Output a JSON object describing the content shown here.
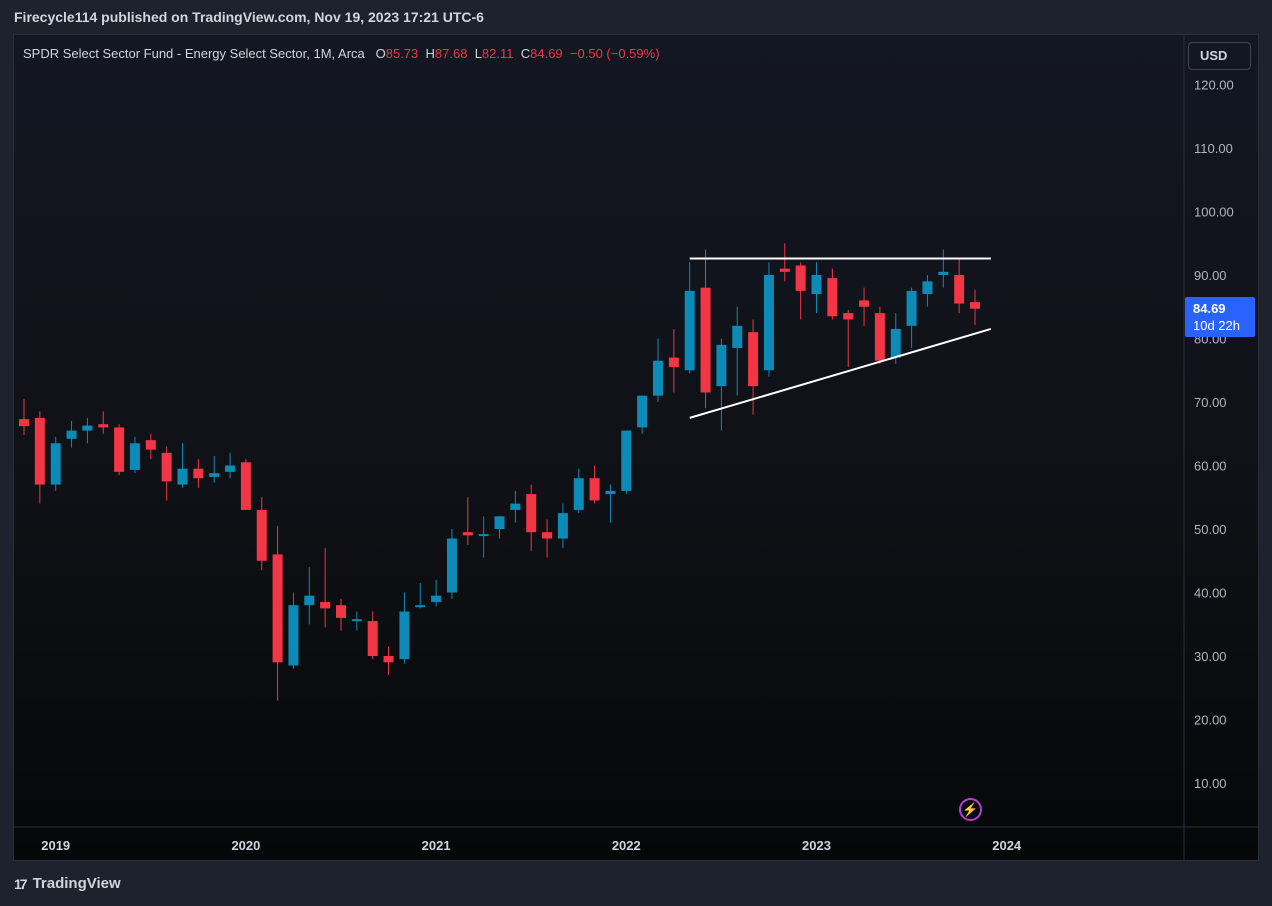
{
  "header": {
    "published": "Firecycle114 published on TradingView.com, Nov 19, 2023 17:21 UTC-6"
  },
  "legend": {
    "symbol": "SPDR Select Sector Fund - Energy Select Sector, 1M, Arca",
    "o_label": "O",
    "o_value": "85.73",
    "h_label": "H",
    "h_value": "87.68",
    "l_label": "L",
    "l_value": "82.11",
    "c_label": "C",
    "c_value": "84.69",
    "change": "−0.50 (−0.59%)"
  },
  "currency": "USD",
  "price_tag": {
    "price": "84.69",
    "countdown": "10d 22h"
  },
  "footer": {
    "brand": "TradingView"
  },
  "colors": {
    "up": "#26a69a",
    "up_body": "#0d8ab5",
    "down": "#f23645",
    "background": "#131722",
    "price_tag": "#2962ff",
    "trendline": "#ffffff"
  },
  "icons": {
    "flash": "lightning-icon",
    "logo": "tradingview-logo-icon"
  },
  "chart_data": {
    "type": "candlestick",
    "title": "SPDR Select Sector Fund - Energy Select Sector, 1M, Arca",
    "xlabel": "",
    "ylabel": "",
    "ylim": [
      3,
      124
    ],
    "y_ticks": [
      "120.00",
      "110.00",
      "100.00",
      "90.00",
      "80.00",
      "70.00",
      "60.00",
      "50.00",
      "40.00",
      "30.00",
      "20.00",
      "10.00"
    ],
    "x_ticks": [
      "2019",
      "2020",
      "2021",
      "2022",
      "2023",
      "2024"
    ],
    "x_ticks_year": [
      2019,
      2020,
      2021,
      2022,
      2023,
      2024
    ],
    "start_month": "2018-11",
    "candles": [
      [
        67.3,
        70.5,
        64.8,
        66.2
      ],
      [
        67.5,
        68.5,
        54.0,
        57.0
      ],
      [
        57.0,
        64.5,
        56.0,
        63.5
      ],
      [
        64.2,
        67.0,
        62.8,
        65.5
      ],
      [
        65.5,
        67.5,
        63.5,
        66.3
      ],
      [
        66.5,
        68.5,
        65.0,
        66.0
      ],
      [
        66.0,
        66.5,
        58.5,
        59.0
      ],
      [
        59.3,
        64.5,
        58.8,
        63.5
      ],
      [
        64.0,
        65.0,
        61.0,
        62.5
      ],
      [
        62.0,
        63.0,
        54.5,
        57.5
      ],
      [
        57.0,
        63.5,
        56.5,
        59.5
      ],
      [
        59.5,
        61.0,
        56.5,
        58.0
      ],
      [
        58.2,
        61.5,
        57.3,
        58.8
      ],
      [
        59.0,
        62.0,
        58.0,
        60.0
      ],
      [
        60.5,
        61.0,
        53.0,
        53.0
      ],
      [
        53.0,
        55.0,
        43.5,
        45.0
      ],
      [
        46.0,
        50.5,
        23.0,
        29.0
      ],
      [
        28.5,
        40.0,
        28.0,
        38.0
      ],
      [
        38.0,
        44.0,
        35.0,
        39.5
      ],
      [
        38.5,
        47.0,
        34.5,
        37.5
      ],
      [
        38.0,
        39.0,
        34.0,
        36.0
      ],
      [
        35.5,
        37.0,
        34.0,
        35.8
      ],
      [
        35.5,
        37.0,
        29.5,
        30.0
      ],
      [
        30.0,
        31.5,
        27.0,
        29.0
      ],
      [
        29.5,
        40.0,
        28.8,
        37.0
      ],
      [
        38.0,
        41.5,
        37.5,
        38.0
      ],
      [
        38.5,
        42.0,
        37.8,
        39.5
      ],
      [
        40.0,
        50.0,
        39.0,
        48.5
      ],
      [
        49.5,
        55.0,
        47.5,
        49.0
      ],
      [
        49.0,
        52.0,
        45.5,
        49.2
      ],
      [
        50.0,
        52.0,
        48.5,
        52.0
      ],
      [
        53.0,
        56.0,
        51.0,
        54.0
      ],
      [
        55.5,
        57.0,
        46.5,
        49.5
      ],
      [
        49.5,
        51.5,
        45.5,
        48.5
      ],
      [
        48.5,
        54.0,
        47.0,
        52.5
      ],
      [
        53.0,
        59.5,
        52.5,
        58.0
      ],
      [
        58.0,
        60.0,
        54.0,
        54.5
      ],
      [
        55.5,
        57.0,
        51.0,
        56.0
      ],
      [
        56.0,
        65.5,
        55.5,
        65.5
      ],
      [
        66.0,
        71.0,
        65.0,
        71.0
      ],
      [
        71.0,
        80.0,
        70.0,
        76.5
      ],
      [
        77.0,
        81.5,
        71.5,
        75.5
      ],
      [
        75.0,
        92.0,
        74.5,
        87.5
      ],
      [
        88.0,
        94.0,
        69.0,
        71.5
      ],
      [
        72.5,
        80.0,
        65.5,
        79.0
      ],
      [
        78.5,
        85.0,
        71.0,
        82.0
      ],
      [
        81.0,
        83.0,
        68.0,
        72.5
      ],
      [
        75.0,
        92.0,
        74.0,
        90.0
      ],
      [
        91.0,
        95.0,
        89.0,
        90.5
      ],
      [
        91.5,
        92.0,
        83.0,
        87.5
      ],
      [
        87.0,
        92.0,
        84.0,
        90.0
      ],
      [
        89.5,
        91.0,
        83.0,
        83.5
      ],
      [
        84.0,
        84.5,
        75.5,
        83.0
      ],
      [
        86.0,
        88.0,
        82.0,
        85.0
      ],
      [
        84.0,
        85.0,
        76.0,
        76.5
      ],
      [
        77.0,
        84.0,
        76.0,
        81.5
      ],
      [
        82.0,
        88.0,
        78.5,
        87.5
      ],
      [
        87.0,
        90.0,
        85.0,
        89.0
      ],
      [
        90.0,
        94.0,
        88.0,
        90.5
      ],
      [
        90.0,
        92.5,
        84.0,
        85.5
      ],
      [
        85.73,
        87.68,
        82.11,
        84.69
      ]
    ],
    "trendlines": [
      {
        "name": "",
        "points": [
          [
            "2022-05",
            92.6
          ],
          [
            "2023-12",
            92.6
          ]
        ]
      },
      {
        "name": "",
        "points": [
          [
            "2022-05",
            67.5
          ],
          [
            "2023-12",
            81.5
          ]
        ]
      }
    ],
    "last_price": 84.69
  }
}
